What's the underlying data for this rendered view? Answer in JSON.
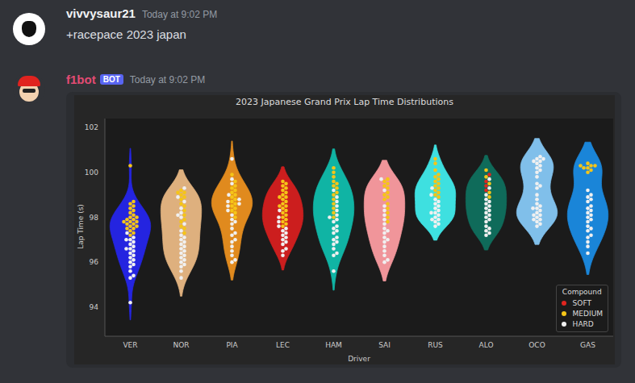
{
  "messages": [
    {
      "author": "vivvysaur21",
      "time": "Today at 9:02 PM",
      "text": "+racepace 2023 japan"
    },
    {
      "author": "f1bot",
      "badge": "BOT",
      "time": "Today at 9:02 PM"
    }
  ],
  "chart_data": {
    "type": "violin",
    "title": "2023 Japanese Grand Prix Lap Time Distributions",
    "x_label": "Driver",
    "y_label": "Lap Time (s)",
    "ylim": [
      92.7,
      102.4
    ],
    "yticks": [
      94,
      96,
      98,
      100,
      102
    ],
    "grid": false,
    "legend": "lower right",
    "legend_title": "Compound",
    "compounds": [
      {
        "name": "SOFT",
        "color": "#e0251f"
      },
      {
        "name": "MEDIUM",
        "color": "#f5c518"
      },
      {
        "name": "HARD",
        "color": "#f0f0f0"
      }
    ],
    "series": [
      {
        "name": "VER",
        "color": "#2424e0",
        "laps": [
          {
            "compound": "MEDIUM",
            "values": [
              100.3,
              98.7,
              98.6,
              98.5,
              98.4,
              98.3,
              98.2,
              98.1,
              98.0,
              98.0,
              97.9,
              97.9,
              97.8,
              97.8,
              97.7,
              97.7,
              97.6,
              97.6,
              97.5,
              97.5,
              97.4,
              97.3,
              97.2,
              97.8
            ]
          },
          {
            "compound": "HARD",
            "values": [
              97.3,
              97.1,
              97.0,
              96.9,
              96.8,
              96.7,
              96.6,
              96.5,
              96.4,
              96.3,
              96.2,
              96.1,
              96.0,
              95.9,
              95.8,
              95.6,
              95.4,
              95.3,
              94.2,
              96.6,
              97.0
            ]
          }
        ]
      },
      {
        "name": "NOR",
        "color": "#deb07e",
        "laps": [
          {
            "compound": "MEDIUM",
            "values": [
              99.2,
              99.1,
              99.0,
              98.8,
              98.6,
              98.5,
              98.3,
              98.1,
              97.9,
              97.8,
              97.6,
              97.5,
              97.3,
              98.9,
              99.1
            ]
          },
          {
            "compound": "HARD",
            "values": [
              99.3,
              98.9,
              98.7,
              98.4,
              98.2,
              98.0,
              97.7,
              97.4,
              97.2,
              97.0,
              96.8,
              96.7,
              96.6,
              96.5,
              96.4,
              96.3,
              96.2,
              96.1,
              96.0,
              95.9,
              95.8,
              95.6,
              95.3,
              97.1,
              96.9,
              98.1
            ]
          }
        ]
      },
      {
        "name": "PIA",
        "color": "#e08a1e",
        "laps": [
          {
            "compound": "MEDIUM",
            "values": [
              99.9,
              99.6,
              99.4,
              99.2,
              99.1,
              99.0,
              98.9,
              98.8,
              98.7,
              98.6,
              98.5,
              98.4,
              98.3,
              98.2,
              98.0,
              99.3
            ]
          },
          {
            "compound": "HARD",
            "values": [
              100.6,
              99.7,
              99.5,
              99.0,
              98.8,
              98.7,
              98.5,
              98.3,
              98.1,
              97.9,
              97.7,
              97.5,
              97.3,
              97.2,
              97.0,
              96.9,
              96.7,
              96.5,
              96.3,
              96.1,
              96.0,
              98.6,
              97.8
            ]
          }
        ]
      },
      {
        "name": "LEC",
        "color": "#cc1e1e",
        "laps": [
          {
            "compound": "MEDIUM",
            "values": [
              99.6,
              99.5,
              99.4,
              99.2,
              99.1,
              99.0,
              98.9,
              98.8,
              98.7,
              98.6,
              98.5,
              98.4,
              98.3,
              98.2,
              98.1,
              98.0,
              97.9,
              97.8,
              97.7,
              97.6,
              99.3,
              98.9,
              98.5
            ]
          },
          {
            "compound": "HARD",
            "values": [
              98.3,
              98.0,
              97.8,
              97.6,
              97.4,
              97.3,
              97.1,
              97.0,
              96.9,
              96.8,
              96.6,
              96.5,
              96.3,
              97.5,
              97.2
            ]
          }
        ]
      },
      {
        "name": "HAM",
        "color": "#10b4a4",
        "laps": [
          {
            "compound": "MEDIUM",
            "values": [
              100.2,
              100.0,
              99.8,
              99.6,
              99.5,
              99.3,
              99.1,
              99.0,
              98.8,
              98.6,
              98.4,
              98.2,
              98.0,
              99.4
            ]
          },
          {
            "compound": "HARD",
            "values": [
              99.2,
              98.9,
              98.7,
              98.5,
              98.3,
              98.1,
              97.9,
              97.8,
              97.6,
              97.4,
              97.3,
              97.1,
              97.0,
              96.9,
              96.8,
              96.6,
              96.4,
              96.3,
              95.6,
              98.0,
              97.5
            ]
          }
        ]
      },
      {
        "name": "SAI",
        "color": "#f0959a",
        "laps": [
          {
            "compound": "MEDIUM",
            "values": [
              99.7,
              99.6,
              99.4,
              99.3,
              99.1,
              99.0,
              98.8,
              98.6,
              98.4,
              98.2,
              98.0,
              97.8,
              99.5,
              98.9
            ]
          },
          {
            "compound": "HARD",
            "values": [
              99.7,
              99.2,
              98.5,
              98.3,
              98.1,
              97.9,
              97.7,
              97.5,
              97.3,
              97.1,
              96.9,
              96.7,
              96.5,
              96.3,
              96.1,
              96.0,
              97.0,
              97.4
            ]
          }
        ]
      },
      {
        "name": "RUS",
        "color": "#3ee0e0",
        "laps": [
          {
            "compound": "MEDIUM",
            "values": [
              100.6,
              100.4,
              100.1,
              99.9,
              99.7,
              99.6,
              99.5,
              99.4,
              99.3,
              99.2,
              99.1,
              99.0,
              98.9,
              99.8
            ]
          },
          {
            "compound": "HARD",
            "values": [
              99.3,
              99.0,
              98.8,
              98.6,
              98.4,
              98.3,
              98.2,
              98.1,
              98.0,
              97.9,
              97.8,
              97.7,
              97.6,
              98.5,
              98.7,
              97.9,
              98.2
            ]
          }
        ]
      },
      {
        "name": "ALO",
        "color": "#0f6b5a",
        "laps": [
          {
            "compound": "SOFT",
            "values": [
              99.9,
              99.6,
              99.4,
              99.2
            ]
          },
          {
            "compound": "MEDIUM",
            "values": [
              100.1,
              99.8,
              99.5,
              99.1,
              98.9
            ]
          },
          {
            "compound": "HARD",
            "values": [
              99.7,
              99.3,
              99.0,
              98.8,
              98.6,
              98.5,
              98.4,
              98.3,
              98.2,
              98.0,
              97.9,
              97.8,
              97.6,
              97.5,
              97.4,
              97.3,
              97.2,
              98.7,
              98.1
            ]
          }
        ]
      },
      {
        "name": "OCO",
        "color": "#80bfea",
        "laps": [
          {
            "compound": "HARD",
            "values": [
              100.7,
              100.6,
              100.6,
              100.5,
              100.5,
              100.4,
              100.3,
              100.2,
              100.1,
              100.0,
              99.8,
              99.5,
              99.3,
              99.0,
              98.8,
              98.6,
              98.5,
              98.4,
              98.3,
              98.2,
              98.1,
              98.0,
              97.9,
              97.8,
              97.7,
              97.6,
              98.4,
              98.1,
              97.9,
              99.4
            ]
          }
        ]
      },
      {
        "name": "GAS",
        "color": "#1a85d8",
        "laps": [
          {
            "compound": "MEDIUM",
            "values": [
              100.4,
              100.3,
              100.3,
              100.2,
              100.2,
              100.1,
              100.0,
              100.3
            ]
          },
          {
            "compound": "HARD",
            "values": [
              99.2,
              99.0,
              98.9,
              98.7,
              98.5,
              98.4,
              98.3,
              98.1,
              98.0,
              97.9,
              97.8,
              97.6,
              97.4,
              97.2,
              97.1,
              96.9,
              96.7,
              96.4,
              98.8,
              98.2,
              97.5
            ]
          }
        ]
      }
    ]
  }
}
